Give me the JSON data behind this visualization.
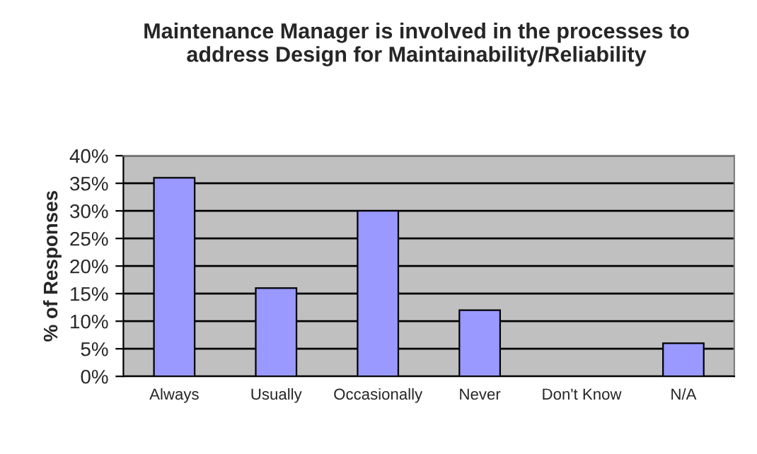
{
  "chart_data": {
    "type": "bar",
    "title": "Maintenance Manager is involved in the processes to\naddress Design for Maintainability/Reliability",
    "ylabel": "% of Responses",
    "categories": [
      "Always",
      "Usually",
      "Occasionally",
      "Never",
      "Don't Know",
      "N/A"
    ],
    "values": [
      36,
      16,
      30,
      12,
      0,
      6
    ],
    "color": "#9999ff",
    "ylim": [
      0,
      40
    ],
    "yticks": [
      {
        "value": 0,
        "label": "0%"
      },
      {
        "value": 5,
        "label": "5%"
      },
      {
        "value": 10,
        "label": "10%"
      },
      {
        "value": 15,
        "label": "15%"
      },
      {
        "value": 20,
        "label": "20%"
      },
      {
        "value": 25,
        "label": "25%"
      },
      {
        "value": 30,
        "label": "30%"
      },
      {
        "value": 35,
        "label": "35%"
      },
      {
        "value": 40,
        "label": "40%"
      }
    ],
    "grid": "y",
    "legend": false
  }
}
